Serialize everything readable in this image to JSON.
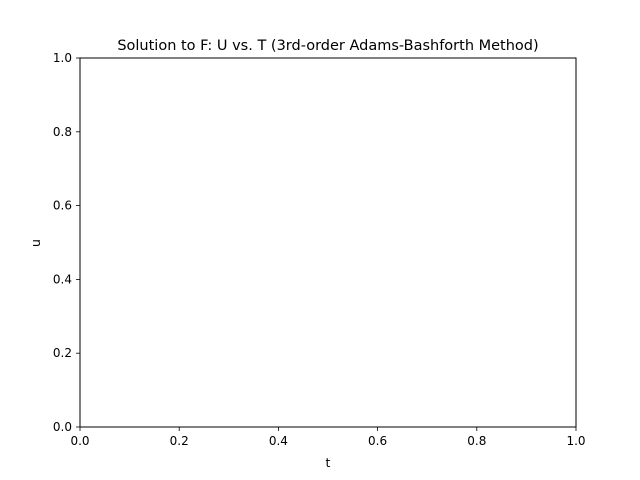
{
  "chart_data": {
    "type": "line",
    "title": "Solution to F: U vs. T (3rd-order Adams-Bashforth Method)",
    "xlabel": "t",
    "ylabel": "u",
    "xlim": [
      0.0,
      1.0
    ],
    "ylim": [
      0.0,
      1.0
    ],
    "xticks": [
      "0.0",
      "0.2",
      "0.4",
      "0.6",
      "0.8",
      "1.0"
    ],
    "yticks": [
      "0.0",
      "0.2",
      "0.4",
      "0.6",
      "0.8",
      "1.0"
    ],
    "grid": false,
    "series": []
  }
}
